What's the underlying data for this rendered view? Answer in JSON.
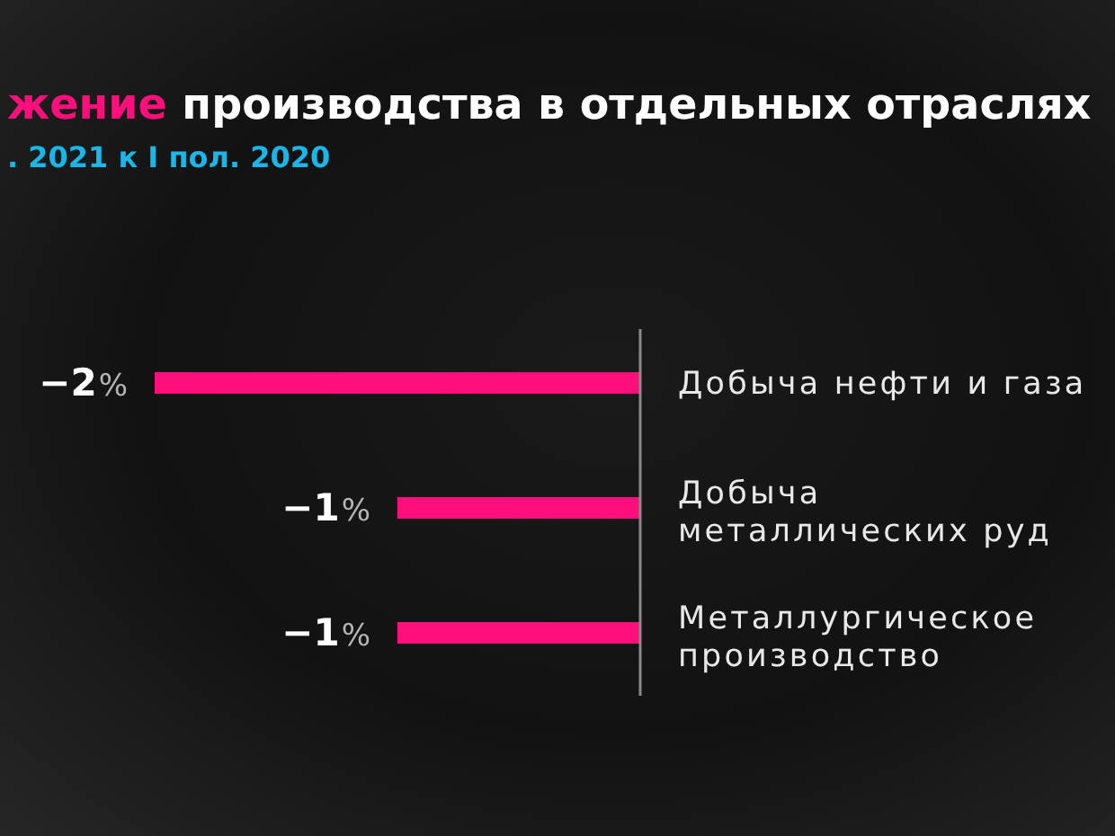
{
  "chart_data": {
    "type": "bar",
    "orientation": "horizontal",
    "title": "жение производства в отдельных отраслях",
    "subtitle": ". 2021 к I пол. 2020",
    "categories": [
      "Добыча нефти и газа",
      "Добыча металлических руд",
      "Металлургическое производство"
    ],
    "values": [
      -2,
      -1,
      -1
    ],
    "color": "#ff0f7b",
    "value_labels": [
      "−2%",
      "−1%",
      "−1%"
    ],
    "tick_labels": "y"
  }
}
